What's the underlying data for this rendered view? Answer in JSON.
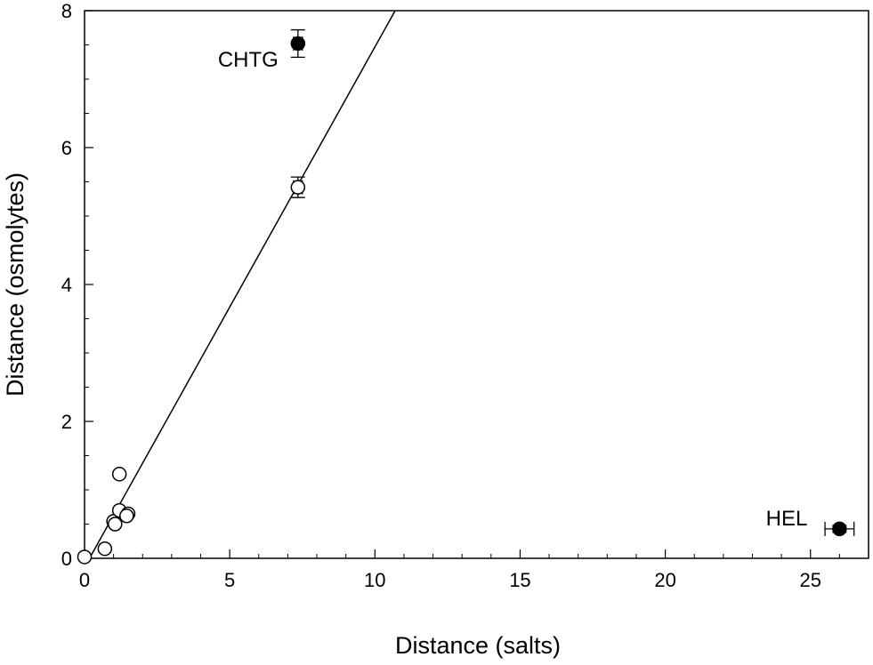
{
  "chart_data": {
    "type": "scatter",
    "title": "",
    "xlabel": "Distance (salts)",
    "ylabel": "Distance (osmolytes)",
    "xlim": [
      0,
      27
    ],
    "ylim": [
      0,
      8
    ],
    "x_ticks": [
      0,
      5,
      10,
      15,
      20,
      25
    ],
    "y_ticks": [
      0,
      2,
      4,
      6,
      8
    ],
    "grid": false,
    "open_points": [
      {
        "x": 0.0,
        "y": 0.02
      },
      {
        "x": 0.7,
        "y": 0.14
      },
      {
        "x": 1.0,
        "y": 0.54
      },
      {
        "x": 1.05,
        "y": 0.5
      },
      {
        "x": 1.2,
        "y": 1.23
      },
      {
        "x": 1.2,
        "y": 0.7
      },
      {
        "x": 1.5,
        "y": 0.65
      },
      {
        "x": 1.45,
        "y": 0.62
      },
      {
        "x": 7.35,
        "y": 5.42,
        "y_err": 0.15,
        "x_err": 0.15
      }
    ],
    "filled_points": [
      {
        "x": 7.35,
        "y": 7.52,
        "y_err": 0.2,
        "x_err": 0.15,
        "label": "CHTG"
      },
      {
        "x": 26.0,
        "y": 0.43,
        "x_err": 0.5,
        "y_err": 0.05,
        "label": "HEL"
      }
    ],
    "fit_line": {
      "slope": 0.76,
      "intercept": -0.13
    }
  }
}
